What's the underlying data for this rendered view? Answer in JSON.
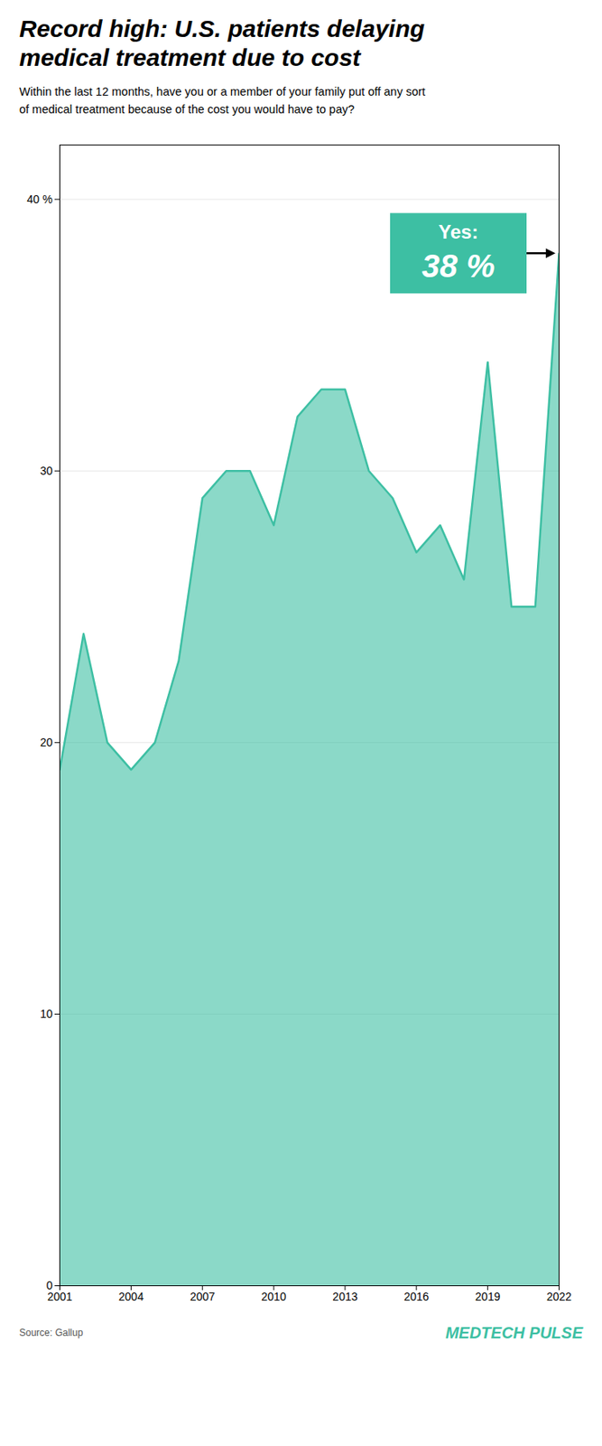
{
  "chart_data": {
    "type": "area",
    "title": "Record high: U.S. patients delaying\nmedical treatment due to cost",
    "subtitle": "Within the last 12 months, have you or a member of your family put off any sort\nof medical treatment because of the cost you would have to pay?",
    "x": [
      2001,
      2002,
      2003,
      2004,
      2005,
      2006,
      2007,
      2008,
      2009,
      2010,
      2011,
      2012,
      2013,
      2014,
      2015,
      2016,
      2017,
      2018,
      2019,
      2020,
      2021,
      2022
    ],
    "values": [
      19,
      24,
      20,
      19,
      20,
      23,
      29,
      30,
      30,
      28,
      32,
      33,
      33,
      30,
      29,
      27,
      28,
      26,
      34,
      25,
      25,
      38
    ],
    "color": "#3dbfa3",
    "xlim": [
      2001,
      2022
    ],
    "xticks": [
      2001,
      2004,
      2007,
      2010,
      2013,
      2016,
      2019,
      2022
    ],
    "ylim": [
      0,
      42
    ],
    "yticks": [
      0,
      10,
      20,
      30,
      {
        "value": 40,
        "label": "40 %"
      }
    ],
    "grid": true,
    "annotations": [
      {
        "x": 2022,
        "y": 38,
        "text": [
          "Yes:",
          "38 %"
        ]
      }
    ],
    "source": "Source: Gallup",
    "branding": "MEDTECH PULSE"
  }
}
